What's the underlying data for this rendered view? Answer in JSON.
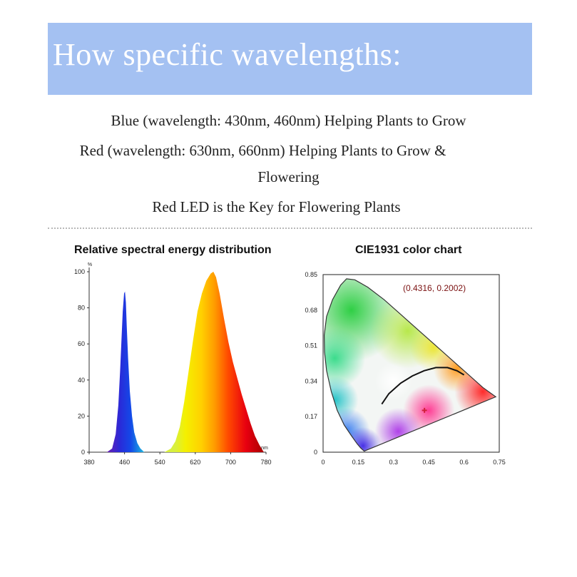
{
  "header": {
    "title": "How specific wavelengths:"
  },
  "body_text": {
    "line1": "Blue (wavelength: 430nm, 460nm) Helping Plants to Grow",
    "line2": "Red (wavelength: 630nm, 660nm) Helping Plants to Grow &",
    "line3": "Flowering",
    "line4": "Red LED is the Key for Flowering Plants"
  },
  "chart_data": [
    {
      "type": "area",
      "title": "Relative spectral energy distribution",
      "ylabel": "%",
      "xlabel": "nm",
      "xlim": [
        380,
        780
      ],
      "ylim": [
        0,
        100
      ],
      "xticks": [
        380,
        460,
        540,
        620,
        700,
        780
      ],
      "yticks": [
        0,
        20,
        40,
        60,
        80,
        100
      ],
      "series": [
        {
          "values": [
            [
              420,
              0
            ],
            [
              432,
              2
            ],
            [
              440,
              10
            ],
            [
              446,
              26
            ],
            [
              450,
              45
            ],
            [
              453,
              62
            ],
            [
              456,
              78
            ],
            [
              459,
              88
            ],
            [
              461,
              89
            ],
            [
              463,
              83
            ],
            [
              465,
              70
            ],
            [
              468,
              52
            ],
            [
              472,
              34
            ],
            [
              477,
              20
            ],
            [
              482,
              11
            ],
            [
              489,
              5
            ],
            [
              496,
              2
            ],
            [
              505,
              0
            ]
          ]
        },
        {
          "values": [
            [
              550,
              0
            ],
            [
              565,
              2
            ],
            [
              575,
              6
            ],
            [
              585,
              14
            ],
            [
              595,
              28
            ],
            [
              605,
              45
            ],
            [
              615,
              62
            ],
            [
              625,
              78
            ],
            [
              635,
              88
            ],
            [
              645,
              95
            ],
            [
              655,
              99
            ],
            [
              661,
              100
            ],
            [
              667,
              97
            ],
            [
              675,
              88
            ],
            [
              685,
              74
            ],
            [
              695,
              61
            ],
            [
              705,
              50
            ],
            [
              715,
              41
            ],
            [
              725,
              32
            ],
            [
              735,
              24
            ],
            [
              745,
              16
            ],
            [
              755,
              9
            ],
            [
              765,
              4
            ],
            [
              775,
              0
            ]
          ]
        }
      ],
      "grid": false
    },
    {
      "type": "scatter",
      "title": "CIE1931 color chart",
      "xlim": [
        0,
        0.75
      ],
      "ylim": [
        0,
        0.85
      ],
      "xticks": [
        "0",
        "0.15",
        "0.3",
        "0.45",
        "0.6",
        "0.75"
      ],
      "yticks": [
        "0",
        "0.17",
        "0.34",
        "0.51",
        "0.68",
        "0.85"
      ],
      "point": {
        "x": 0.4316,
        "y": 0.2002,
        "color": "#d0203a"
      },
      "annotation": "(0.4316, 0.2002)",
      "grid": false
    }
  ]
}
